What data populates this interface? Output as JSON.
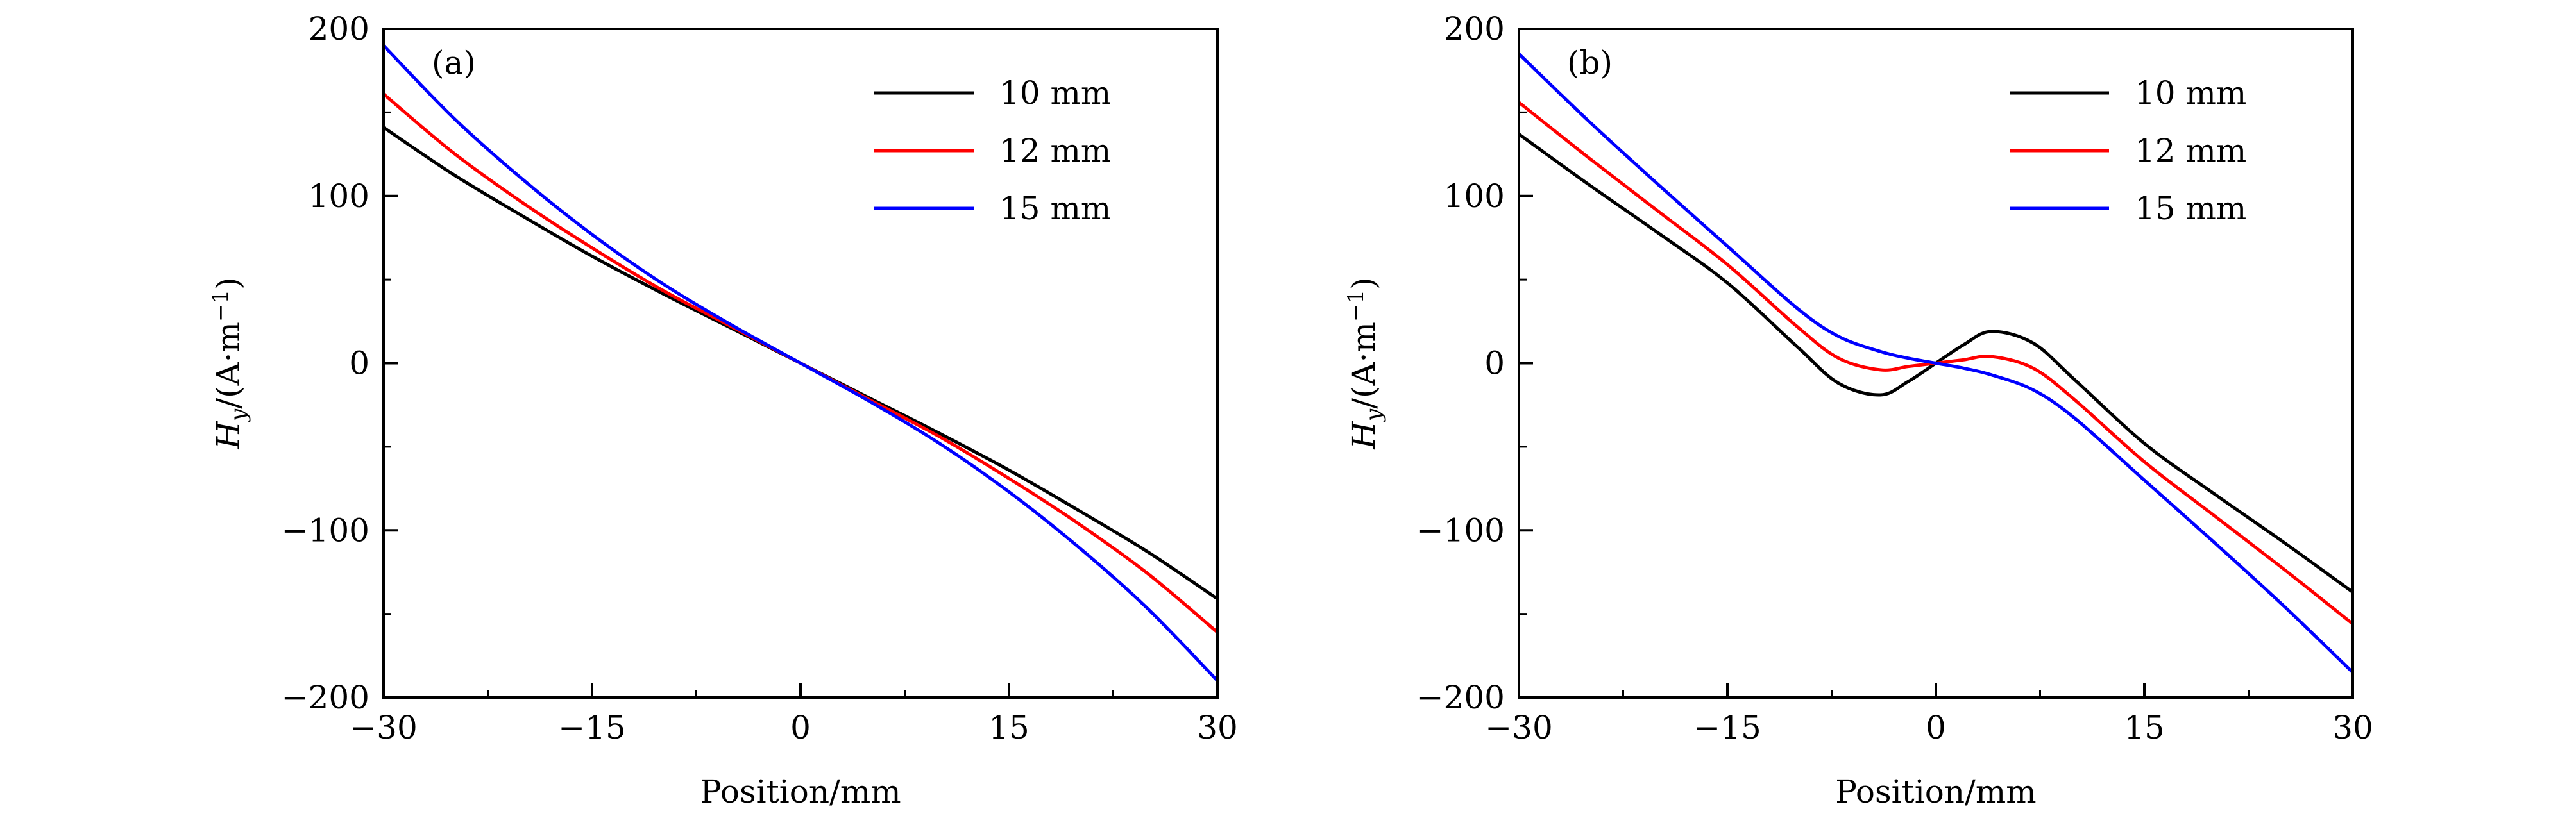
{
  "chart_data": [
    {
      "type": "line",
      "panel_label": "(a)",
      "xlabel": "Position/mm",
      "ylabel": {
        "main": "H",
        "sub": "y",
        "rest": "/(A·m",
        "sup": "−1",
        "close": ")"
      },
      "xlim": [
        -30,
        30
      ],
      "ylim": [
        -200,
        200
      ],
      "x_ticks": [
        -30,
        -15,
        0,
        15,
        30
      ],
      "x_tick_labels": [
        "−30",
        "−15",
        "0",
        "15",
        "30"
      ],
      "y_ticks": [
        200,
        100,
        0,
        -100,
        -200
      ],
      "y_tick_labels": [
        "200",
        "100",
        "0",
        "−100",
        "−200"
      ],
      "legend_position": "top-right",
      "x": [
        -30,
        -25,
        -20,
        -15,
        -10,
        -5,
        0,
        5,
        10,
        15,
        20,
        25,
        30
      ],
      "series": [
        {
          "name": "10 mm",
          "color": "#000000",
          "values": [
            141,
            113,
            88,
            64,
            42,
            21,
            0,
            -21,
            -42,
            -64,
            -88,
            -113,
            -141
          ]
        },
        {
          "name": "12 mm",
          "color": "#ff0000",
          "values": [
            161,
            126,
            96,
            69,
            44,
            22,
            0,
            -22,
            -44,
            -69,
            -96,
            -126,
            -161
          ]
        },
        {
          "name": "15 mm",
          "color": "#0000ff",
          "values": [
            190,
            147,
            110,
            77,
            48,
            23,
            0,
            -23,
            -48,
            -77,
            -110,
            -147,
            -190
          ]
        }
      ]
    },
    {
      "type": "line",
      "panel_label": "(b)",
      "xlabel": "Position/mm",
      "ylabel": {
        "main": "H",
        "sub": "y",
        "rest": "/(A·m",
        "sup": "−1",
        "close": ")"
      },
      "xlim": [
        -30,
        30
      ],
      "ylim": [
        -200,
        200
      ],
      "x_ticks": [
        -30,
        -15,
        0,
        15,
        30
      ],
      "x_tick_labels": [
        "−30",
        "−15",
        "0",
        "15",
        "30"
      ],
      "y_ticks": [
        200,
        100,
        0,
        -100,
        -200
      ],
      "y_tick_labels": [
        "200",
        "100",
        "0",
        "−100",
        "−200"
      ],
      "legend_position": "top-right",
      "x": [
        -30,
        -25,
        -20,
        -15,
        -10,
        -7,
        -4,
        -2,
        0,
        2,
        4,
        7,
        10,
        15,
        20,
        25,
        30
      ],
      "series": [
        {
          "name": "10 mm",
          "color": "#000000",
          "values": [
            137,
            107,
            78,
            48,
            10,
            -12,
            -19,
            -11,
            0,
            11,
            19,
            12,
            -10,
            -48,
            -78,
            -107,
            -137
          ]
        },
        {
          "name": "12 mm",
          "color": "#ff0000",
          "values": [
            156,
            123,
            91,
            59,
            22,
            3,
            -4,
            -2,
            0,
            2,
            4,
            -3,
            -22,
            -59,
            -91,
            -123,
            -156
          ]
        },
        {
          "name": "15 mm",
          "color": "#0000ff",
          "values": [
            185,
            145,
            107,
            70,
            33,
            16,
            7,
            3,
            0,
            -3,
            -7,
            -16,
            -33,
            -70,
            -107,
            -145,
            -185
          ]
        }
      ]
    }
  ]
}
